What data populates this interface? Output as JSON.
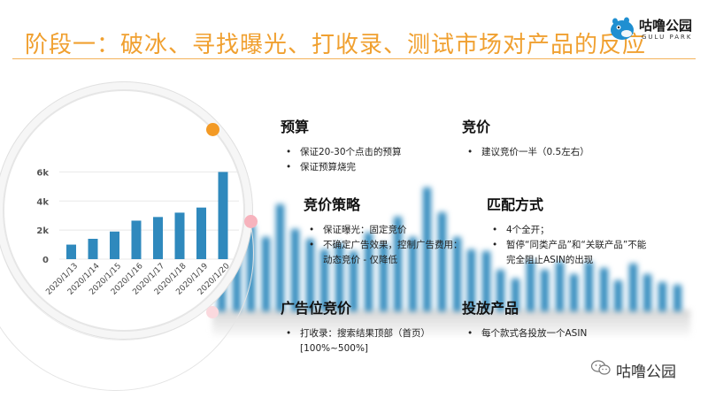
{
  "title": "阶段一：破冰、寻找曝光、打收录、测试市场对产品的反应",
  "logo": {
    "name_cn": "咕噜公园",
    "name_en": "GULU PARK",
    "icon": "hippo-logo-icon"
  },
  "colors": {
    "title": "#f0a030",
    "bar": "#2f89bd",
    "accent_orange": "#f39a25",
    "accent_pink": "#f7b3bd"
  },
  "sections": {
    "budget": {
      "heading": "预算",
      "items": [
        "保证20-30个点击的预算",
        "保证预算烧完"
      ]
    },
    "bid": {
      "heading": "竞价",
      "items": [
        "建议竞价一半（0.5左右）"
      ]
    },
    "bid_strategy": {
      "heading": "竞价策略",
      "items": [
        "保证曝光：固定竞价",
        "不确定广告效果，控制广告费用：动态竞价 - 仅降低"
      ]
    },
    "match_type": {
      "heading": "匹配方式",
      "items": [
        "4个全开；",
        "暂停“同类产品”和“关联产品”不能完全阻止ASIN的出现"
      ]
    },
    "placement_bid": {
      "heading": "广告位竞价",
      "items": [
        "打收录：搜索结果顶部（首页）[100%~500%]"
      ]
    },
    "products": {
      "heading": "投放产品",
      "items": [
        "每个款式各投放一个ASIN"
      ]
    }
  },
  "chart_data": {
    "type": "bar",
    "categories": [
      "2020/1/13",
      "2020/1/14",
      "2020/1/15",
      "2020/1/16",
      "2020/1/17",
      "2020/1/18",
      "2020/1/19",
      "2020/1/20"
    ],
    "values": [
      1000,
      1400,
      1900,
      2650,
      2900,
      3200,
      3550,
      6000
    ],
    "yticks": [
      "0",
      "2k",
      "4k",
      "6k"
    ],
    "ylim": [
      0,
      7000
    ],
    "grid": true
  },
  "background_chart": {
    "type": "bar",
    "values": [
      2600,
      3900,
      4200,
      3600,
      5200,
      4000,
      3500,
      3000,
      3300,
      2900,
      3800,
      3300,
      4600,
      3600,
      6000,
      4800,
      3600,
      3000,
      2900,
      2000,
      1600,
      2500,
      2000,
      2400,
      1800,
      2400,
      2100,
      1500,
      2300,
      1800,
      1400,
      1300
    ]
  },
  "watermark": {
    "text": "咕噜公园",
    "icon": "wechat-icon"
  }
}
